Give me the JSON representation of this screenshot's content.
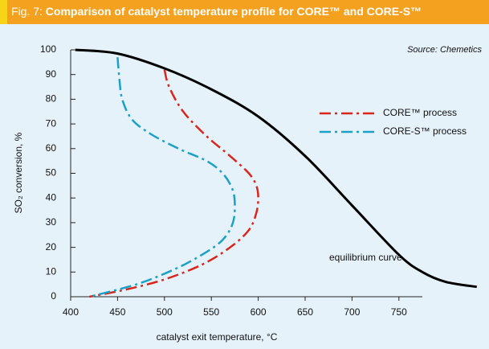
{
  "chart_data": {
    "type": "line",
    "figure_label": "Fig. 7:",
    "title": "Comparison of catalyst temperature profile for CORE™ and CORE-S™",
    "source": "Source: Chemetics",
    "x_label": "catalyst exit temperature, °C",
    "y_label": "SO₂ conversion, %",
    "annotation": "equilibrium curve",
    "xlim": [
      400,
      775
    ],
    "xticks": [
      400,
      450,
      500,
      550,
      600,
      650,
      700,
      750
    ],
    "ylim": [
      0,
      100
    ],
    "yticks": [
      0,
      10,
      20,
      30,
      40,
      50,
      60,
      70,
      80,
      90,
      100
    ],
    "grid": false,
    "legend": "upper right",
    "series": [
      {
        "name": "CORE™ process",
        "color": "#d9261c",
        "dash": "dashdot",
        "x": [
          500,
          505,
          520,
          545,
          570,
          590,
          598,
          600,
          598,
          590,
          570,
          540,
          500,
          460,
          420
        ],
        "values": [
          92,
          85,
          75,
          65,
          57,
          50,
          45,
          40,
          34,
          27,
          20,
          13,
          7,
          3,
          0
        ]
      },
      {
        "name": "CORE-S™ process",
        "color": "#1ba1c6",
        "dash": "dashdot",
        "x": [
          450,
          452,
          455,
          465,
          485,
          515,
          545,
          562,
          572,
          575,
          573,
          562,
          540,
          510,
          470,
          420
        ],
        "values": [
          97,
          88,
          80,
          72,
          66,
          60,
          55,
          50,
          44,
          38,
          30,
          23,
          17,
          11,
          5,
          0
        ]
      },
      {
        "name": "equilibrium curve",
        "color": "#000000",
        "dash": "solid",
        "in_legend": false,
        "x": [
          405,
          450,
          500,
          550,
          600,
          650,
          700,
          750,
          775,
          800,
          833
        ],
        "values": [
          100,
          98.5,
          92.5,
          84,
          73,
          57,
          37,
          17,
          10,
          6,
          4
        ]
      }
    ]
  }
}
